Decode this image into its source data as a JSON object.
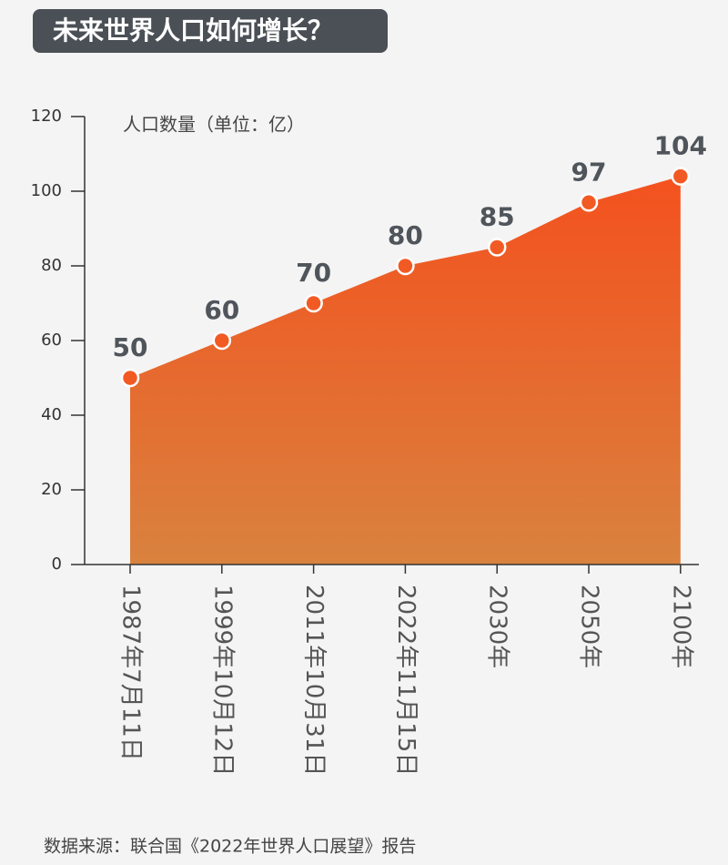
{
  "chart_data": {
    "type": "area",
    "title": "未来世界人口如何增长？",
    "y_label": "人口数量（单位：亿）",
    "source": "数据来源：联合国《2022年世界人口展望》报告",
    "categories": [
      "1987年7月11日",
      "1999年10月12日",
      "2011年10月31日",
      "2022年11月15日",
      "2030年",
      "2050年",
      "2100年"
    ],
    "values": [
      50,
      60,
      70,
      80,
      85,
      97,
      104
    ],
    "color": "#f4511e",
    "gradient_color": "#d9823f",
    "marker_color": "#f25a24",
    "ylim": [
      0,
      120
    ],
    "yticks": [
      0,
      20,
      40,
      60,
      80,
      100,
      120
    ]
  }
}
